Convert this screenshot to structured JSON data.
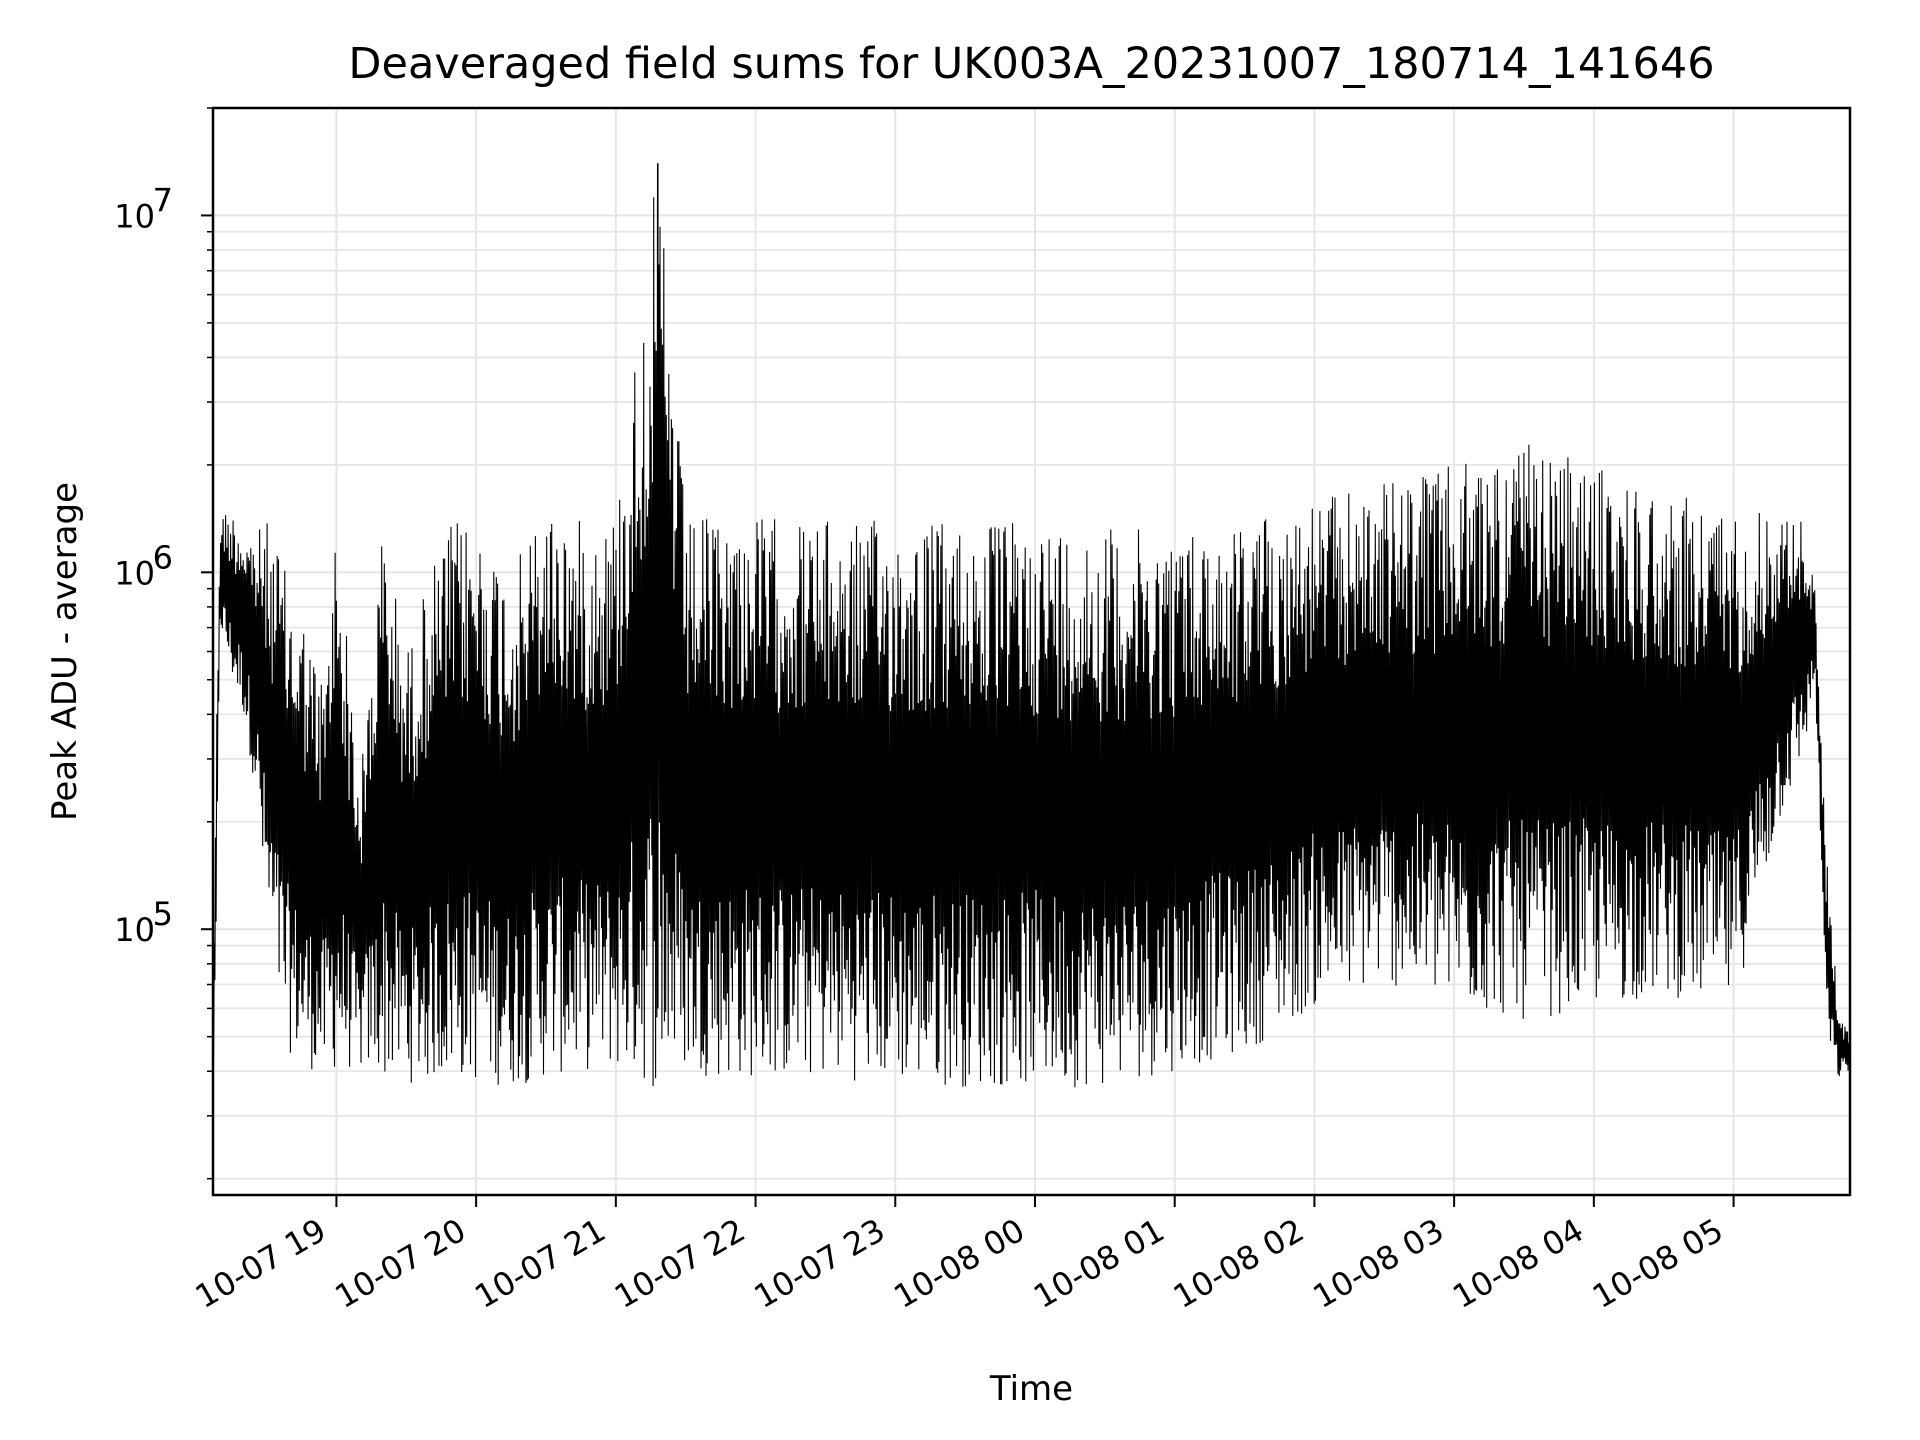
{
  "chart_data": {
    "type": "line",
    "title": "Deaveraged field sums for UK003A_20231007_180714_141646",
    "xlabel": "Time",
    "ylabel": "Peak ADU - average",
    "yscale": "log",
    "ylim": [
      18000,
      20000000
    ],
    "xlim": [
      "2023-10-07 18:07",
      "2023-10-08 05:50"
    ],
    "grid": true,
    "line_color": "#000000",
    "x_ticks": [
      {
        "t": "2023-10-07 19:00",
        "label": "10-07 19"
      },
      {
        "t": "2023-10-07 20:00",
        "label": "10-07 20"
      },
      {
        "t": "2023-10-07 21:00",
        "label": "10-07 21"
      },
      {
        "t": "2023-10-07 22:00",
        "label": "10-07 22"
      },
      {
        "t": "2023-10-07 23:00",
        "label": "10-07 23"
      },
      {
        "t": "2023-10-08 00:00",
        "label": "10-08 00"
      },
      {
        "t": "2023-10-08 01:00",
        "label": "10-08 01"
      },
      {
        "t": "2023-10-08 02:00",
        "label": "10-08 02"
      },
      {
        "t": "2023-10-08 03:00",
        "label": "10-08 03"
      },
      {
        "t": "2023-10-08 04:00",
        "label": "10-08 04"
      },
      {
        "t": "2023-10-08 05:00",
        "label": "10-08 05"
      }
    ],
    "y_ticks": [
      {
        "value": 100000,
        "base": "10",
        "exp": "5"
      },
      {
        "value": 1000000,
        "base": "10",
        "exp": "6"
      },
      {
        "value": 10000000,
        "base": "10",
        "exp": "7"
      }
    ],
    "series": [
      {
        "x": [
          "2023-10-07 18:07",
          "2023-10-07 18:08",
          "2023-10-07 18:10",
          "2023-10-07 18:15",
          "2023-10-07 18:20",
          "2023-10-07 18:25",
          "2023-10-07 18:30",
          "2023-10-07 18:35",
          "2023-10-07 18:40",
          "2023-10-07 18:45",
          "2023-10-07 18:50",
          "2023-10-07 18:55",
          "2023-10-07 19:00",
          "2023-10-07 19:10",
          "2023-10-07 19:20",
          "2023-10-07 19:30",
          "2023-10-07 19:40",
          "2023-10-07 19:50",
          "2023-10-07 20:00",
          "2023-10-07 20:15",
          "2023-10-07 20:30",
          "2023-10-07 20:45",
          "2023-10-07 21:00",
          "2023-10-07 21:18",
          "2023-10-07 21:30",
          "2023-10-07 21:45",
          "2023-10-07 22:00",
          "2023-10-07 22:30",
          "2023-10-07 23:00",
          "2023-10-07 23:30",
          "2023-10-08 00:00",
          "2023-10-08 00:30",
          "2023-10-08 01:00",
          "2023-10-08 01:30",
          "2023-10-08 02:00",
          "2023-10-08 02:30",
          "2023-10-08 03:00",
          "2023-10-08 03:30",
          "2023-10-08 04:00",
          "2023-10-08 04:30",
          "2023-10-08 05:00",
          "2023-10-08 05:20",
          "2023-10-08 05:30",
          "2023-10-08 05:35",
          "2023-10-08 05:40",
          "2023-10-08 05:45",
          "2023-10-08 05:50"
        ],
        "low": [
          40000,
          45000,
          700000,
          500000,
          400000,
          250000,
          100000,
          60000,
          45000,
          42000,
          40000,
          38000,
          40000,
          40000,
          38000,
          37000,
          37000,
          38000,
          37000,
          36000,
          38000,
          40000,
          40000,
          35000,
          40000,
          38000,
          38000,
          38000,
          37000,
          36000,
          36000,
          36000,
          40000,
          45000,
          60000,
          70000,
          60000,
          55000,
          60000,
          65000,
          60000,
          200000,
          300000,
          500000,
          50000,
          38000,
          40000
        ],
        "high": [
          45000,
          250000,
          1500000,
          1500000,
          1400000,
          1300000,
          1400000,
          1200000,
          900000,
          800000,
          600000,
          500000,
          1500000,
          250000,
          1400000,
          600000,
          1000000,
          1400000,
          1400000,
          1000000,
          1600000,
          1400000,
          1500000,
          14000000,
          1400000,
          1450000,
          1450000,
          1400000,
          1400000,
          1400000,
          1400000,
          1350000,
          1300000,
          1400000,
          1600000,
          1800000,
          2000000,
          2300000,
          2000000,
          1700000,
          1500000,
          1500000,
          1400000,
          900000,
          160000,
          60000,
          50000
        ]
      }
    ]
  }
}
